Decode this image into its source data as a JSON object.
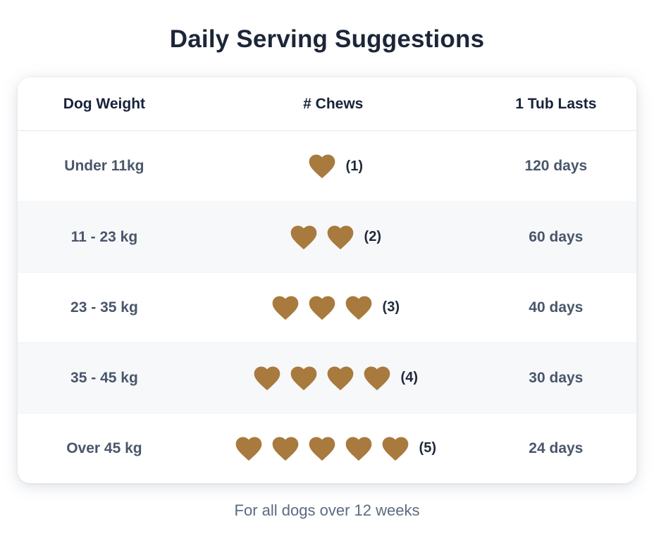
{
  "title": "Daily Serving Suggestions",
  "footer_note": "For all dogs over 12 weeks",
  "colors": {
    "heart": "#a87a3e",
    "title_text": "#1c2638",
    "header_text": "#17223a",
    "cell_text": "#49566b",
    "count_text": "#20293a",
    "footer_text": "#5b6b80",
    "stripe_bg": "#f7f8fa",
    "card_bg": "#ffffff"
  },
  "icons": {
    "chew": "heart-chew-icon"
  },
  "table": {
    "headers": [
      "Dog Weight",
      "# Chews",
      "1 Tub Lasts"
    ],
    "rows": [
      {
        "weight": "Under 11kg",
        "chews": 1,
        "chews_label": "(1)",
        "lasts": "120 days"
      },
      {
        "weight": "11 - 23 kg",
        "chews": 2,
        "chews_label": "(2)",
        "lasts": "60 days"
      },
      {
        "weight": "23 - 35 kg",
        "chews": 3,
        "chews_label": "(3)",
        "lasts": "40 days"
      },
      {
        "weight": "35 - 45 kg",
        "chews": 4,
        "chews_label": "(4)",
        "lasts": "30 days"
      },
      {
        "weight": "Over 45 kg",
        "chews": 5,
        "chews_label": "(5)",
        "lasts": "24 days"
      }
    ]
  },
  "chart_data": {
    "type": "table",
    "title": "Daily Serving Suggestions",
    "columns": [
      "Dog Weight",
      "# Chews",
      "1 Tub Lasts"
    ],
    "rows": [
      [
        "Under 11kg",
        1,
        "120 days"
      ],
      [
        "11 - 23 kg",
        2,
        "60 days"
      ],
      [
        "23 - 35 kg",
        3,
        "40 days"
      ],
      [
        "35 - 45 kg",
        4,
        "30 days"
      ],
      [
        "Over 45 kg",
        5,
        "24 days"
      ]
    ],
    "pictogram": "brown heart per chew",
    "note": "For all dogs over 12 weeks"
  }
}
